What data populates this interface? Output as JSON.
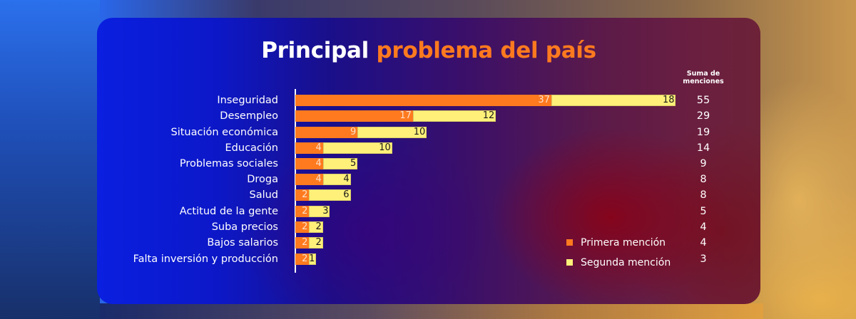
{
  "chart_data": {
    "type": "bar",
    "orientation": "horizontal",
    "stacked": true,
    "title": "Principal problema del país",
    "title_parts": {
      "plain": "Principal",
      "accent": "problema del país"
    },
    "categories": [
      "Inseguridad",
      "Desempleo",
      "Situación económica",
      "Educación",
      "Problemas sociales",
      "Droga",
      "Salud",
      "Actitud de la gente",
      "Suba precios",
      "Bajos salarios",
      "Falta inversión y producción"
    ],
    "series": [
      {
        "name": "Primera mención",
        "color": "#ff7a1f",
        "values": [
          37,
          17,
          9,
          4,
          4,
          4,
          2,
          2,
          2,
          2,
          2
        ]
      },
      {
        "name": "Segunda mención",
        "color": "#fff07a",
        "values": [
          18,
          12,
          10,
          10,
          5,
          4,
          6,
          3,
          2,
          2,
          1
        ]
      }
    ],
    "totals_header": "Suma de menciones",
    "totals": [
      55,
      29,
      19,
      14,
      9,
      8,
      8,
      5,
      4,
      4,
      3
    ],
    "legend_position": "bottom-right",
    "grid": false,
    "xlabel": "",
    "ylabel": ""
  },
  "legend": {
    "first": "Primera mención",
    "second": "Segunda mención"
  },
  "colors": {
    "accent": "#ff7a1f",
    "second": "#fff07a"
  }
}
